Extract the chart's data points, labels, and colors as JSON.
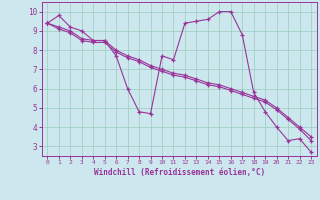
{
  "xlabel": "Windchill (Refroidissement éolien,°C)",
  "bg_color": "#cce8ee",
  "line_color": "#993399",
  "grid_color": "#99ccbb",
  "ylim": [
    2.5,
    10.5
  ],
  "xlim": [
    -0.5,
    23.5
  ],
  "yticks": [
    3,
    4,
    5,
    6,
    7,
    8,
    9,
    10
  ],
  "xticks": [
    0,
    1,
    2,
    3,
    4,
    5,
    6,
    7,
    8,
    9,
    10,
    11,
    12,
    13,
    14,
    15,
    16,
    17,
    18,
    19,
    20,
    21,
    22,
    23
  ],
  "line1_x": [
    0,
    1,
    2,
    3,
    4,
    5,
    6,
    7,
    8,
    9,
    10,
    11,
    12,
    13,
    14,
    15,
    16,
    17,
    18,
    19,
    20,
    21,
    22,
    23
  ],
  "line1_y": [
    9.4,
    9.8,
    9.2,
    9.0,
    8.5,
    8.5,
    7.7,
    6.0,
    4.8,
    4.7,
    7.7,
    7.5,
    9.4,
    9.5,
    9.6,
    10.0,
    10.0,
    8.8,
    5.8,
    4.8,
    4.0,
    3.3,
    3.4,
    2.7
  ],
  "line2_x": [
    0,
    1,
    2,
    3,
    4,
    5,
    6,
    7,
    8,
    9,
    10,
    11,
    12,
    13,
    14,
    15,
    16,
    17,
    18,
    19,
    20,
    21,
    22,
    23
  ],
  "line2_y": [
    9.4,
    9.2,
    9.0,
    8.6,
    8.5,
    8.5,
    8.0,
    7.7,
    7.5,
    7.2,
    7.0,
    6.8,
    6.7,
    6.5,
    6.3,
    6.2,
    6.0,
    5.8,
    5.6,
    5.4,
    5.0,
    4.5,
    4.0,
    3.5
  ],
  "line3_x": [
    0,
    1,
    2,
    3,
    4,
    5,
    6,
    7,
    8,
    9,
    10,
    11,
    12,
    13,
    14,
    15,
    16,
    17,
    18,
    19,
    20,
    21,
    22,
    23
  ],
  "line3_y": [
    9.4,
    9.1,
    8.9,
    8.5,
    8.4,
    8.4,
    7.9,
    7.6,
    7.4,
    7.1,
    6.9,
    6.7,
    6.6,
    6.4,
    6.2,
    6.1,
    5.9,
    5.7,
    5.5,
    5.3,
    4.9,
    4.4,
    3.9,
    3.3
  ]
}
